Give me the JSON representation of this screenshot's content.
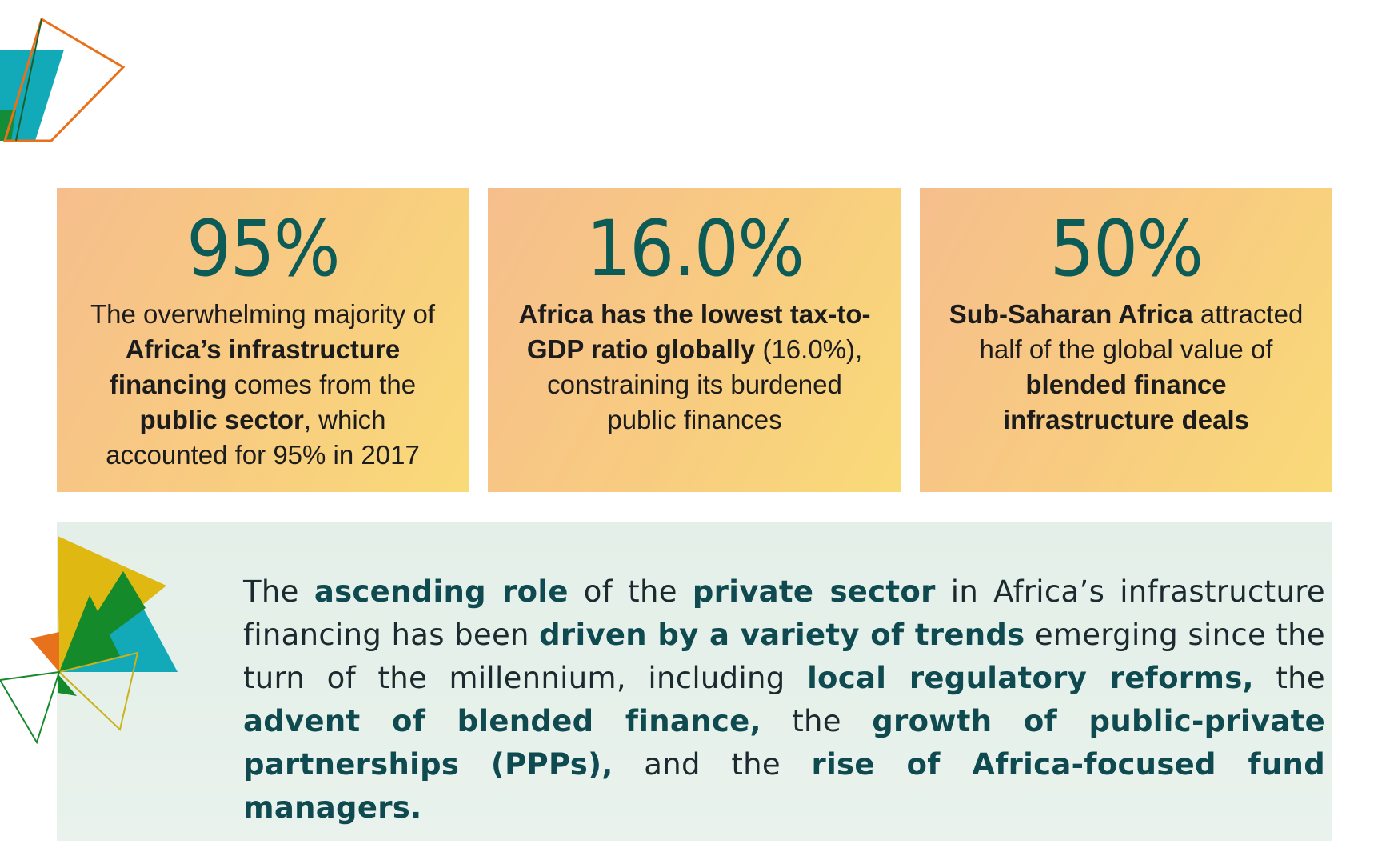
{
  "colors": {
    "teal_dark": "#0d5b57",
    "card_gradient_start": "#f6be8c",
    "card_gradient_end": "#f9da78",
    "quote_bg": "#e6f0ea",
    "accent_orange": "#e8711c",
    "accent_teal": "#12a9b8",
    "accent_green": "#148a2a",
    "accent_yellow": "#e0b812"
  },
  "stats": [
    {
      "value": "95%",
      "p1": "The overwhelming majority of ",
      "b1": "Africa’s infrastructure financing",
      "p2": " comes from the ",
      "b2": "public sector",
      "p3": ", which accounted for 95% in 2017"
    },
    {
      "value": "16.0%",
      "b1": "Africa has the lowest tax-to-GDP ratio globally",
      "p1": " (16.0%), constraining its burdened public finances"
    },
    {
      "value": "50%",
      "b1": "Sub-Saharan Africa",
      "p1": " attracted half of the global value of ",
      "b2": "blended finance infrastructure deals"
    }
  ],
  "quote": {
    "t1": "The ",
    "b1": "ascending role",
    "t2": " of the ",
    "b2": "private sector",
    "t3": " in Africa’s infrastructure financing has been ",
    "b3": "driven by a variety of trends",
    "t4": " emerging since the turn of the millennium, including ",
    "b4": "local regulatory reforms,",
    "t5": " the ",
    "b5": "advent of blended finance,",
    "t6": " the ",
    "b6": "growth of public-private partnerships (PPPs),",
    "t7": " and the ",
    "b7": "rise of Africa-focused fund managers."
  }
}
